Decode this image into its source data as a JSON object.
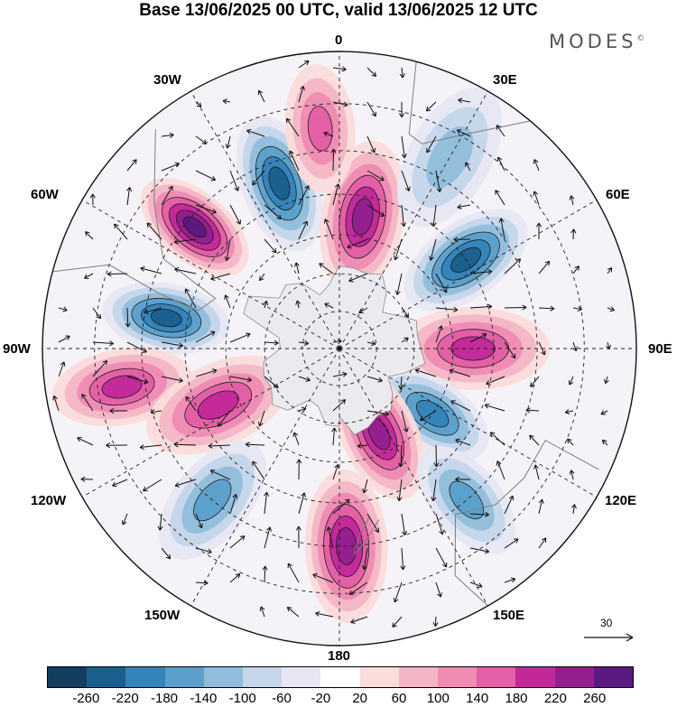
{
  "header": {
    "title": "Base 13/06/2025 00 UTC, valid 13/06/2025 12 UTC",
    "brand": "MODES",
    "brand_mark": "©"
  },
  "map": {
    "projection": "south-polar-stereographic",
    "longitude_labels": [
      "0",
      "30E",
      "60E",
      "90E",
      "120E",
      "150E",
      "180",
      "150W",
      "120W",
      "90W",
      "60W",
      "30W"
    ],
    "reference_vector_label": "30",
    "field": "anomaly shading with wind vectors and contours",
    "anomaly_centres": [
      {
        "lon": -50,
        "lat": -42,
        "value": 260
      },
      {
        "lon": -20,
        "lat": -45,
        "value": -220
      },
      {
        "lon": 10,
        "lat": -55,
        "value": 240
      },
      {
        "lon": -5,
        "lat": -35,
        "value": 140
      },
      {
        "lon": 55,
        "lat": -50,
        "value": -220
      },
      {
        "lon": 90,
        "lat": -55,
        "value": 200
      },
      {
        "lon": -80,
        "lat": -45,
        "value": -220
      },
      {
        "lon": -100,
        "lat": -35,
        "value": 180
      },
      {
        "lon": -115,
        "lat": -55,
        "value": 200
      },
      {
        "lon": 125,
        "lat": -60,
        "value": -180
      },
      {
        "lon": 155,
        "lat": -65,
        "value": 220
      },
      {
        "lon": 178,
        "lat": -40,
        "value": 220
      },
      {
        "lon": 140,
        "lat": -40,
        "value": -160
      },
      {
        "lon": -140,
        "lat": -40,
        "value": -160
      },
      {
        "lon": 30,
        "lat": -35,
        "value": -100
      }
    ]
  },
  "colorbar": {
    "colors": [
      "#123f5e",
      "#1b5f8d",
      "#3483bb",
      "#5aa0cb",
      "#91bddc",
      "#c6d6ea",
      "#e6e7f2",
      "#ffffff",
      "#fadcdb",
      "#f4b6c6",
      "#ef8bb3",
      "#e35fa6",
      "#c3289a",
      "#931f8e",
      "#5b1a7f"
    ],
    "labels": [
      "-260",
      "-220",
      "-180",
      "-140",
      "-100",
      "-60",
      "-20",
      "20",
      "60",
      "100",
      "140",
      "180",
      "220",
      "260"
    ]
  }
}
